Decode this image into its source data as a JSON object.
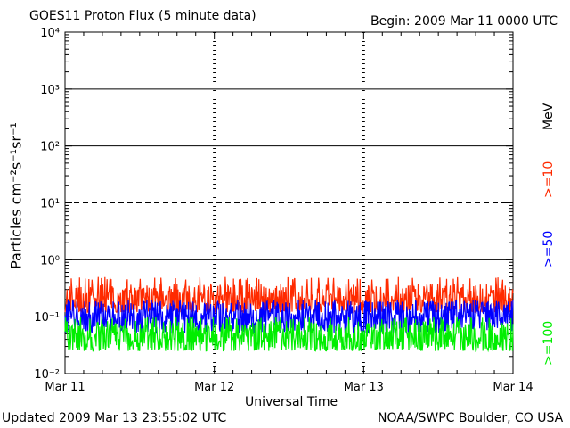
{
  "header": {
    "title": "GOES11 Proton Flux (5 minute data)",
    "begin": "Begin: 2009 Mar 11 0000 UTC"
  },
  "footer": {
    "updated": "Updated 2009 Mar 13 23:55:02 UTC",
    "source": "NOAA/SWPC Boulder, CO USA"
  },
  "chart_data": {
    "type": "line",
    "title": "GOES11 Proton Flux (5 minute data)",
    "xlabel": "Universal Time",
    "ylabel": "Particles cm⁻²s⁻¹sr⁻¹",
    "yscale": "log",
    "ylim": [
      0.01,
      10000
    ],
    "xlim": [
      "2009-03-11T00:00",
      "2009-03-14T00:00"
    ],
    "x_ticks": [
      "Mar 11",
      "Mar 12",
      "Mar 13",
      "Mar 14"
    ],
    "y_ticks": [
      "10⁻²",
      "10⁻¹",
      "10⁰",
      "10¹",
      "10²",
      "10³",
      "10⁴"
    ],
    "unit_label": "MeV",
    "grid": {
      "solid_lines": [
        1,
        100,
        1000
      ],
      "dashed_lines": [
        10
      ]
    },
    "series": [
      {
        "name": ">=10",
        "color": "#ff2a00",
        "typical": 0.2,
        "range": [
          0.12,
          0.5
        ]
      },
      {
        "name": ">=50",
        "color": "#0000ff",
        "typical": 0.1,
        "range": [
          0.05,
          0.2
        ]
      },
      {
        "name": ">=100",
        "color": "#00ee00",
        "typical": 0.045,
        "range": [
          0.025,
          0.1
        ]
      }
    ],
    "samples_per_day": 288
  }
}
